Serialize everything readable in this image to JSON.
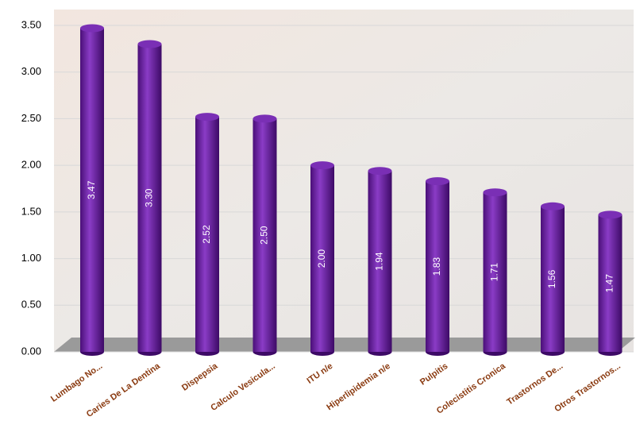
{
  "chart_data": {
    "type": "bar",
    "categories": [
      "Lumbago No...",
      "Caries De La Dentina",
      "Dispepsia",
      "Calculo Vesicula...",
      "ITU n/e",
      "Hiperlipidemia n/e",
      "Pulpitis",
      "Colecistitis Cronica",
      "Trastornos De...",
      "Otros Trastornos..."
    ],
    "values": [
      3.47,
      3.3,
      2.52,
      2.5,
      2.0,
      1.94,
      1.83,
      1.71,
      1.56,
      1.47
    ],
    "value_labels": [
      "3.47",
      "3.30",
      "2.52",
      "2.50",
      "2.00",
      "1.94",
      "1.83",
      "1.71",
      "1.56",
      "1.47"
    ],
    "color": "#6a1fa0",
    "ylim": [
      0,
      3.5
    ],
    "yticks": [
      {
        "value": 0,
        "label": "0.00"
      },
      {
        "value": 0.5,
        "label": "0.50"
      },
      {
        "value": 1,
        "label": "1.00"
      },
      {
        "value": 1.5,
        "label": "1.50"
      },
      {
        "value": 2,
        "label": "2.00"
      },
      {
        "value": 2.5,
        "label": "2.50"
      },
      {
        "value": 3,
        "label": "3.00"
      },
      {
        "value": 3.5,
        "label": "3.50"
      }
    ],
    "grid": true
  }
}
